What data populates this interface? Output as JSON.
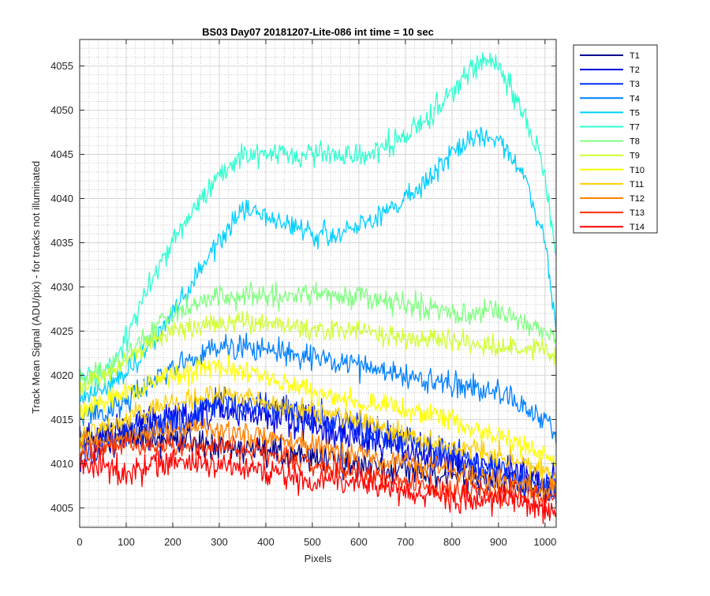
{
  "chart_data": {
    "type": "line",
    "title": "BS03 Day07 20181207-Lite-086 int time = 10 sec",
    "xlabel": "Pixels",
    "ylabel": "Track Mean Signal (ADU/pix) - for tracks not illuminated",
    "xlim": [
      0,
      1024
    ],
    "ylim": [
      4002.8,
      4058
    ],
    "x_ticks": [
      0,
      100,
      200,
      300,
      400,
      500,
      600,
      700,
      800,
      900,
      1000
    ],
    "y_ticks": [
      4005,
      4010,
      4015,
      4020,
      4025,
      4030,
      4035,
      4040,
      4045,
      4050,
      4055
    ],
    "grid": true,
    "minor_grid": true,
    "legend_position": "outside-right",
    "series": [
      {
        "name": "T1",
        "color": "#00008f",
        "noise": 1.6,
        "x": [
          0,
          150,
          300,
          450,
          600,
          750,
          900,
          1024
        ],
        "values": [
          4013,
          4013,
          4012,
          4011,
          4010,
          4009,
          4008,
          4007
        ]
      },
      {
        "name": "T2",
        "color": "#0000df",
        "noise": 1.8,
        "x": [
          0,
          150,
          300,
          450,
          600,
          750,
          900,
          1024
        ],
        "values": [
          4012,
          4015,
          4016,
          4015,
          4013,
          4011,
          4009,
          4008
        ]
      },
      {
        "name": "T3",
        "color": "#0030ff",
        "noise": 1.8,
        "x": [
          0,
          150,
          300,
          450,
          600,
          750,
          900,
          1024
        ],
        "values": [
          4011,
          4014,
          4017,
          4016,
          4014,
          4012,
          4009,
          4007
        ]
      },
      {
        "name": "T4",
        "color": "#0080ff",
        "noise": 1.3,
        "x": [
          0,
          100,
          200,
          300,
          400,
          500,
          600,
          700,
          800,
          900,
          1000,
          1024
        ],
        "values": [
          4015,
          4017,
          4021,
          4023,
          4023,
          4022,
          4021,
          4020,
          4019,
          4018,
          4015,
          4013
        ]
      },
      {
        "name": "T5",
        "color": "#00cfff",
        "noise": 1.2,
        "x": [
          0,
          100,
          150,
          200,
          250,
          300,
          350,
          400,
          450,
          500,
          550,
          600,
          650,
          700,
          750,
          800,
          850,
          900,
          950,
          1000,
          1024
        ],
        "values": [
          4017,
          4020,
          4023,
          4027,
          4031,
          4035,
          4039,
          4038,
          4037,
          4036,
          4036,
          4037,
          4038,
          4040,
          4042,
          4045,
          4047,
          4047,
          4043,
          4035,
          4025
        ]
      },
      {
        "name": "T7",
        "color": "#30ffcf",
        "noise": 1.4,
        "x": [
          0,
          50,
          100,
          150,
          200,
          250,
          300,
          350,
          400,
          450,
          500,
          550,
          600,
          650,
          700,
          750,
          800,
          850,
          900,
          950,
          1000,
          1024
        ],
        "values": [
          4020,
          4020,
          4024,
          4030,
          4035,
          4039,
          4043,
          4045,
          4045,
          4045,
          4045,
          4045,
          4045,
          4046,
          4047,
          4049,
          4052,
          4055,
          4055,
          4050,
          4043,
          4033
        ]
      },
      {
        "name": "T8",
        "color": "#80ff80",
        "noise": 1.3,
        "x": [
          0,
          100,
          150,
          200,
          300,
          400,
          500,
          600,
          700,
          800,
          900,
          1000,
          1024
        ],
        "values": [
          4019,
          4022,
          4025,
          4027,
          4029,
          4029,
          4029,
          4029,
          4028,
          4027,
          4027,
          4025,
          4024
        ]
      },
      {
        "name": "T9",
        "color": "#cfff30",
        "noise": 1.1,
        "x": [
          0,
          100,
          200,
          300,
          400,
          500,
          600,
          700,
          800,
          900,
          1000,
          1024
        ],
        "values": [
          4018,
          4022,
          4025,
          4026,
          4026,
          4025,
          4025,
          4024,
          4024,
          4023,
          4023,
          4022
        ]
      },
      {
        "name": "T10",
        "color": "#ffff00",
        "noise": 1.2,
        "x": [
          0,
          100,
          200,
          300,
          400,
          500,
          600,
          700,
          800,
          900,
          1000,
          1024
        ],
        "values": [
          4016,
          4018,
          4020,
          4021,
          4020,
          4018,
          4017,
          4016,
          4015,
          4013,
          4011,
          4010
        ]
      },
      {
        "name": "T11",
        "color": "#ffcf00",
        "noise": 1.2,
        "x": [
          0,
          100,
          200,
          300,
          400,
          500,
          600,
          700,
          800,
          900,
          1000,
          1024
        ],
        "values": [
          4013,
          4015,
          4017,
          4018,
          4017,
          4016,
          4015,
          4013,
          4012,
          4011,
          4009,
          4008
        ]
      },
      {
        "name": "T12",
        "color": "#ff8000",
        "noise": 1.2,
        "x": [
          0,
          100,
          200,
          300,
          400,
          500,
          600,
          700,
          800,
          900,
          1000,
          1024
        ],
        "values": [
          4012,
          4013,
          4014,
          4014,
          4013,
          4012,
          4011,
          4010,
          4009,
          4008,
          4007,
          4007
        ]
      },
      {
        "name": "T13",
        "color": "#ff3000",
        "noise": 1.2,
        "x": [
          0,
          100,
          200,
          300,
          400,
          500,
          600,
          700,
          800,
          900,
          1000,
          1024
        ],
        "values": [
          4011,
          4012,
          4012,
          4012,
          4011,
          4010,
          4009,
          4008,
          4007,
          4007,
          4006,
          4006
        ]
      },
      {
        "name": "T14",
        "color": "#ff0000",
        "noise": 1.5,
        "x": [
          0,
          100,
          200,
          300,
          400,
          500,
          600,
          700,
          800,
          900,
          1000,
          1024
        ],
        "values": [
          4010,
          4009,
          4010,
          4010,
          4009,
          4008,
          4008,
          4007,
          4006,
          4006,
          4005,
          4005
        ]
      }
    ]
  }
}
